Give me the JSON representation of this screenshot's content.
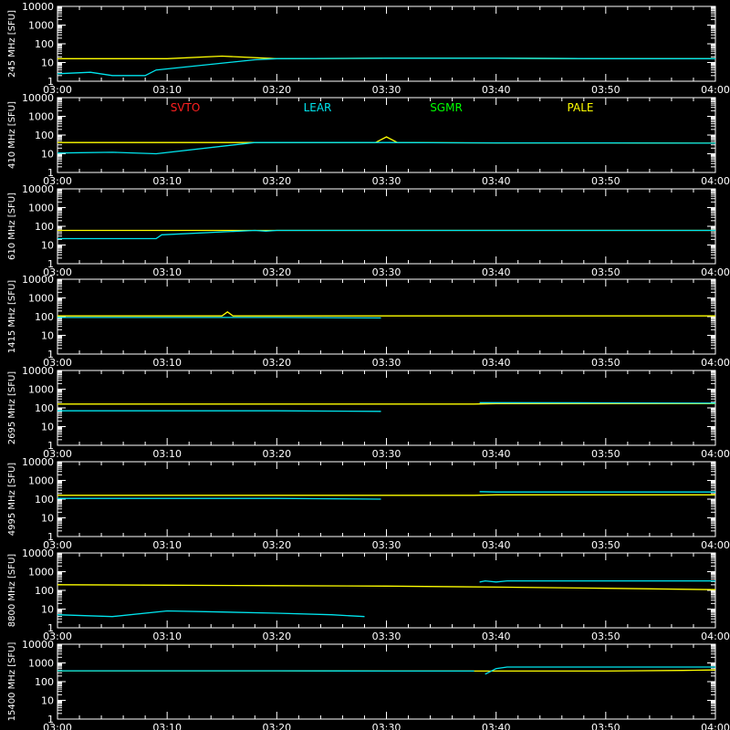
{
  "chart_data": [
    {
      "type": "line",
      "ylabel": "245 MHz [SFU]",
      "ylim": [
        1,
        10000
      ],
      "yscale": "log",
      "xlim": [
        "03:00",
        "04:00"
      ],
      "xticks": [
        "03:00",
        "03:10",
        "03:20",
        "03:30",
        "03:40",
        "03:50",
        "04:00"
      ],
      "yticks": [
        "1",
        "10",
        "100",
        "1000",
        "10000"
      ],
      "series": [
        {
          "name": "PALE",
          "color": "#ffff00",
          "x": [
            "03:00",
            "03:10",
            "03:15",
            "03:20",
            "03:30",
            "03:40",
            "03:50",
            "04:00"
          ],
          "values": [
            16,
            16,
            22,
            16,
            17,
            17,
            16,
            16
          ]
        },
        {
          "name": "LEAR",
          "color": "#00e5ee",
          "x": [
            "03:00",
            "03:03",
            "03:05",
            "03:08",
            "03:09",
            "03:18",
            "03:20",
            "03:30",
            "03:40",
            "03:50",
            "04:00"
          ],
          "values": [
            2.5,
            3,
            2,
            2,
            4,
            14,
            16,
            17,
            17,
            16,
            16
          ]
        }
      ]
    },
    {
      "type": "line",
      "ylabel": "410 MHz [SFU]",
      "ylim": [
        1,
        10000
      ],
      "yscale": "log",
      "xlim": [
        "03:00",
        "04:00"
      ],
      "xticks": [
        "03:00",
        "03:10",
        "03:20",
        "03:30",
        "03:40",
        "03:50",
        "04:00"
      ],
      "yticks": [
        "1",
        "10",
        "100",
        "1000",
        "10000"
      ],
      "legend": [
        "SVTO",
        "LEAR",
        "SGMR",
        "PALE"
      ],
      "legend_colors": [
        "#ff2020",
        "#00e5ee",
        "#00ff00",
        "#ffff00"
      ],
      "series": [
        {
          "name": "PALE",
          "color": "#ffff00",
          "x": [
            "03:00",
            "03:10",
            "03:20",
            "03:29",
            "03:30",
            "03:31",
            "03:40",
            "03:50",
            "04:00"
          ],
          "values": [
            40,
            40,
            40,
            40,
            80,
            40,
            38,
            38,
            37
          ]
        },
        {
          "name": "LEAR",
          "color": "#00e5ee",
          "x": [
            "03:00",
            "03:05",
            "03:09",
            "03:18",
            "03:20",
            "03:30",
            "03:40",
            "03:50",
            "04:00"
          ],
          "values": [
            11,
            12,
            10,
            40,
            40,
            40,
            38,
            38,
            37
          ]
        }
      ]
    },
    {
      "type": "line",
      "ylabel": "610 MHz [SFU]",
      "ylim": [
        1,
        10000
      ],
      "yscale": "log",
      "xlim": [
        "03:00",
        "04:00"
      ],
      "xticks": [
        "03:00",
        "03:10",
        "03:20",
        "03:30",
        "03:40",
        "03:50",
        "04:00"
      ],
      "yticks": [
        "1",
        "10",
        "100",
        "1000",
        "10000"
      ],
      "series": [
        {
          "name": "PALE",
          "color": "#ffff00",
          "x": [
            "03:00",
            "03:20",
            "03:40",
            "04:00"
          ],
          "values": [
            60,
            60,
            60,
            60
          ]
        },
        {
          "name": "LEAR",
          "color": "#00e5ee",
          "x": [
            "03:00",
            "03:09",
            "03:09.5",
            "03:18",
            "03:19",
            "03:20",
            "03:40",
            "04:00"
          ],
          "values": [
            22,
            22,
            35,
            60,
            55,
            60,
            60,
            60
          ]
        }
      ]
    },
    {
      "type": "line",
      "ylabel": "1415 MHz [SFU]",
      "ylim": [
        1,
        10000
      ],
      "yscale": "log",
      "xlim": [
        "03:00",
        "04:00"
      ],
      "xticks": [
        "03:00",
        "03:10",
        "03:20",
        "03:30",
        "03:40",
        "03:50",
        "04:00"
      ],
      "yticks": [
        "1",
        "10",
        "100",
        "1000",
        "10000"
      ],
      "series": [
        {
          "name": "PALE",
          "color": "#ffff00",
          "x": [
            "03:00",
            "03:15",
            "03:15.5",
            "03:16",
            "03:30",
            "03:40",
            "04:00"
          ],
          "values": [
            110,
            110,
            180,
            110,
            110,
            110,
            110
          ]
        },
        {
          "name": "LEAR",
          "color": "#00e5ee",
          "x": [
            "03:00",
            "03:10",
            "03:20",
            "03:29.5"
          ],
          "values": [
            90,
            90,
            90,
            85
          ]
        }
      ]
    },
    {
      "type": "line",
      "ylabel": "2695 MHz [SFU]",
      "ylim": [
        1,
        10000
      ],
      "yscale": "log",
      "xlim": [
        "03:00",
        "04:00"
      ],
      "xticks": [
        "03:00",
        "03:10",
        "03:20",
        "03:30",
        "03:40",
        "03:50",
        "04:00"
      ],
      "yticks": [
        "1",
        "10",
        "100",
        "1000",
        "10000"
      ],
      "series": [
        {
          "name": "PALE",
          "color": "#ffff00",
          "x": [
            "03:00",
            "03:20",
            "03:38",
            "03:40",
            "04:00"
          ],
          "values": [
            160,
            160,
            160,
            170,
            170
          ]
        },
        {
          "name": "LEAR",
          "color": "#00e5ee",
          "x": [
            "03:00",
            "03:10",
            "03:20",
            "03:29.5"
          ],
          "values": [
            70,
            70,
            70,
            65
          ]
        },
        {
          "name": "LEAR",
          "color": "#00e5ee",
          "x": [
            "03:38.5",
            "03:40",
            "03:50",
            "04:00"
          ],
          "values": [
            190,
            190,
            185,
            180
          ]
        }
      ]
    },
    {
      "type": "line",
      "ylabel": "4995 MHz [SFU]",
      "ylim": [
        1,
        10000
      ],
      "yscale": "log",
      "xlim": [
        "03:00",
        "04:00"
      ],
      "xticks": [
        "03:00",
        "03:10",
        "03:20",
        "03:30",
        "03:40",
        "03:50",
        "04:00"
      ],
      "yticks": [
        "1",
        "10",
        "100",
        "1000",
        "10000"
      ],
      "series": [
        {
          "name": "PALE",
          "color": "#ffff00",
          "x": [
            "03:00",
            "03:20",
            "03:38",
            "03:40",
            "04:00"
          ],
          "values": [
            160,
            160,
            160,
            170,
            170
          ]
        },
        {
          "name": "LEAR",
          "color": "#00e5ee",
          "x": [
            "03:00",
            "03:10",
            "03:20",
            "03:29.5"
          ],
          "values": [
            110,
            110,
            110,
            100
          ]
        },
        {
          "name": "LEAR",
          "color": "#00e5ee",
          "x": [
            "03:38.5",
            "03:40",
            "03:50",
            "04:00"
          ],
          "values": [
            250,
            240,
            240,
            240
          ]
        }
      ]
    },
    {
      "type": "line",
      "ylabel": "8800 MHz [SFU]",
      "ylim": [
        1,
        10000
      ],
      "yscale": "log",
      "xlim": [
        "03:00",
        "04:00"
      ],
      "xticks": [
        "03:00",
        "03:10",
        "03:20",
        "03:30",
        "03:40",
        "03:50",
        "04:00"
      ],
      "yticks": [
        "1",
        "10",
        "100",
        "1000",
        "10000"
      ],
      "series": [
        {
          "name": "PALE",
          "color": "#ffff00",
          "x": [
            "03:00",
            "03:10",
            "03:20",
            "03:30",
            "03:40",
            "03:50",
            "04:00"
          ],
          "values": [
            200,
            190,
            180,
            170,
            150,
            130,
            110
          ]
        },
        {
          "name": "LEAR",
          "color": "#00e5ee",
          "x": [
            "03:00",
            "03:05",
            "03:10",
            "03:15",
            "03:20",
            "03:25",
            "03:28"
          ],
          "values": [
            5,
            4,
            8,
            7,
            6,
            5,
            4
          ]
        },
        {
          "name": "LEAR",
          "color": "#00e5ee",
          "x": [
            "03:38.5",
            "03:39",
            "03:40",
            "03:41",
            "03:50",
            "04:00"
          ],
          "values": [
            280,
            320,
            280,
            320,
            320,
            320
          ]
        }
      ]
    },
    {
      "type": "line",
      "ylabel": "15400 MHz [SFU]",
      "ylim": [
        1,
        10000
      ],
      "yscale": "log",
      "xlim": [
        "03:00",
        "04:00"
      ],
      "xticks": [
        "03:00",
        "03:10",
        "03:20",
        "03:30",
        "03:40",
        "03:50",
        "04:00"
      ],
      "yticks": [
        "1",
        "10",
        "100",
        "1000",
        "10000"
      ],
      "series": [
        {
          "name": "PALE",
          "color": "#ffff00",
          "x": [
            "03:00",
            "03:10",
            "03:20",
            "03:30",
            "03:40",
            "03:50",
            "03:57",
            "04:00"
          ],
          "values": [
            380,
            380,
            380,
            370,
            370,
            370,
            400,
            420
          ]
        },
        {
          "name": "LEAR",
          "color": "#00e5ee",
          "x": [
            "03:00",
            "03:10",
            "03:20",
            "03:30",
            "03:38"
          ],
          "values": [
            380,
            380,
            380,
            370,
            370
          ]
        },
        {
          "name": "LEAR",
          "color": "#00e5ee",
          "x": [
            "03:39",
            "03:40",
            "03:41",
            "03:50",
            "04:00"
          ],
          "values": [
            250,
            500,
            600,
            600,
            600
          ]
        }
      ]
    }
  ]
}
